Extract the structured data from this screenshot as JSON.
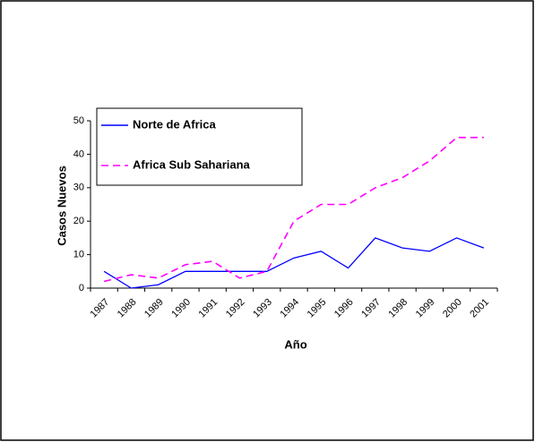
{
  "chart_data": {
    "type": "line",
    "categories": [
      "1987",
      "1988",
      "1989",
      "1990",
      "1991",
      "1992",
      "1993",
      "1994",
      "1995",
      "1996",
      "1997",
      "1998",
      "1999",
      "2000",
      "2001"
    ],
    "series": [
      {
        "name": "Norte de Africa",
        "color": "#0000ff",
        "dash": false,
        "values": [
          5,
          0,
          1,
          5,
          5,
          5,
          5,
          9,
          11,
          6,
          15,
          12,
          11,
          15,
          12
        ]
      },
      {
        "name": "Africa Sub Sahariana",
        "color": "#ff00ff",
        "dash": true,
        "values": [
          2,
          4,
          3,
          7,
          8,
          3,
          5,
          20,
          25,
          25,
          30,
          33,
          38,
          45,
          45
        ]
      }
    ],
    "x_label": "Año",
    "y_label": "Casos Nuevos",
    "ylim": [
      0,
      50
    ],
    "yticks": [
      0,
      10,
      20,
      30,
      40,
      50
    ],
    "legend": "upper-left"
  }
}
